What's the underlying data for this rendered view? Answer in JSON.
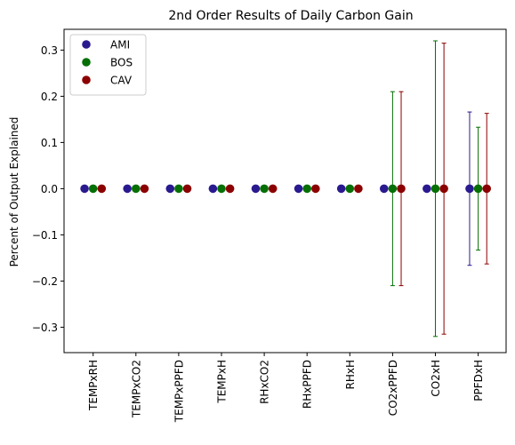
{
  "chart_data": {
    "type": "scatter",
    "title": "2nd Order Results of Daily Carbon Gain",
    "xlabel": "",
    "ylabel": "Percent of Output Explained",
    "ylim": [
      -0.355,
      0.345
    ],
    "yticks": [
      0.3,
      0.2,
      0.1,
      0.0,
      -0.1,
      -0.2,
      -0.3
    ],
    "ytick_labels": [
      "0.3",
      "0.2",
      "0.1",
      "0.0",
      "−0.1",
      "−0.2",
      "−0.3"
    ],
    "categories": [
      "TEMPxRH",
      "TEMPxCO2",
      "TEMPxPPFD",
      "TEMPxH",
      "RHxCO2",
      "RHxPPFD",
      "RHxH",
      "CO2xPPFD",
      "CO2xH",
      "PPFDxH"
    ],
    "legend_position": "top-left",
    "grid": false,
    "series": [
      {
        "name": "AMI",
        "color": "#2a1a8f",
        "offset": -0.2,
        "values": [
          0,
          0,
          0,
          0,
          0,
          0,
          0,
          0,
          0,
          0
        ],
        "errors": [
          0,
          0,
          0,
          0,
          0,
          0,
          0,
          0,
          0,
          0.166
        ]
      },
      {
        "name": "BOS",
        "color": "#067006",
        "offset": 0,
        "values": [
          0,
          0,
          0,
          0,
          0,
          0,
          0,
          0,
          0,
          0
        ],
        "errors": [
          0,
          0,
          0,
          0,
          0,
          0,
          0,
          0.21,
          0.32,
          0.133
        ]
      },
      {
        "name": "CAV",
        "color": "#8b0000",
        "offset": 0.2,
        "values": [
          0,
          0,
          0,
          0,
          0,
          0,
          0,
          0,
          0,
          0
        ],
        "errors": [
          0,
          0,
          0,
          0,
          0,
          0,
          0,
          0.21,
          0.315,
          0.163
        ]
      }
    ]
  }
}
